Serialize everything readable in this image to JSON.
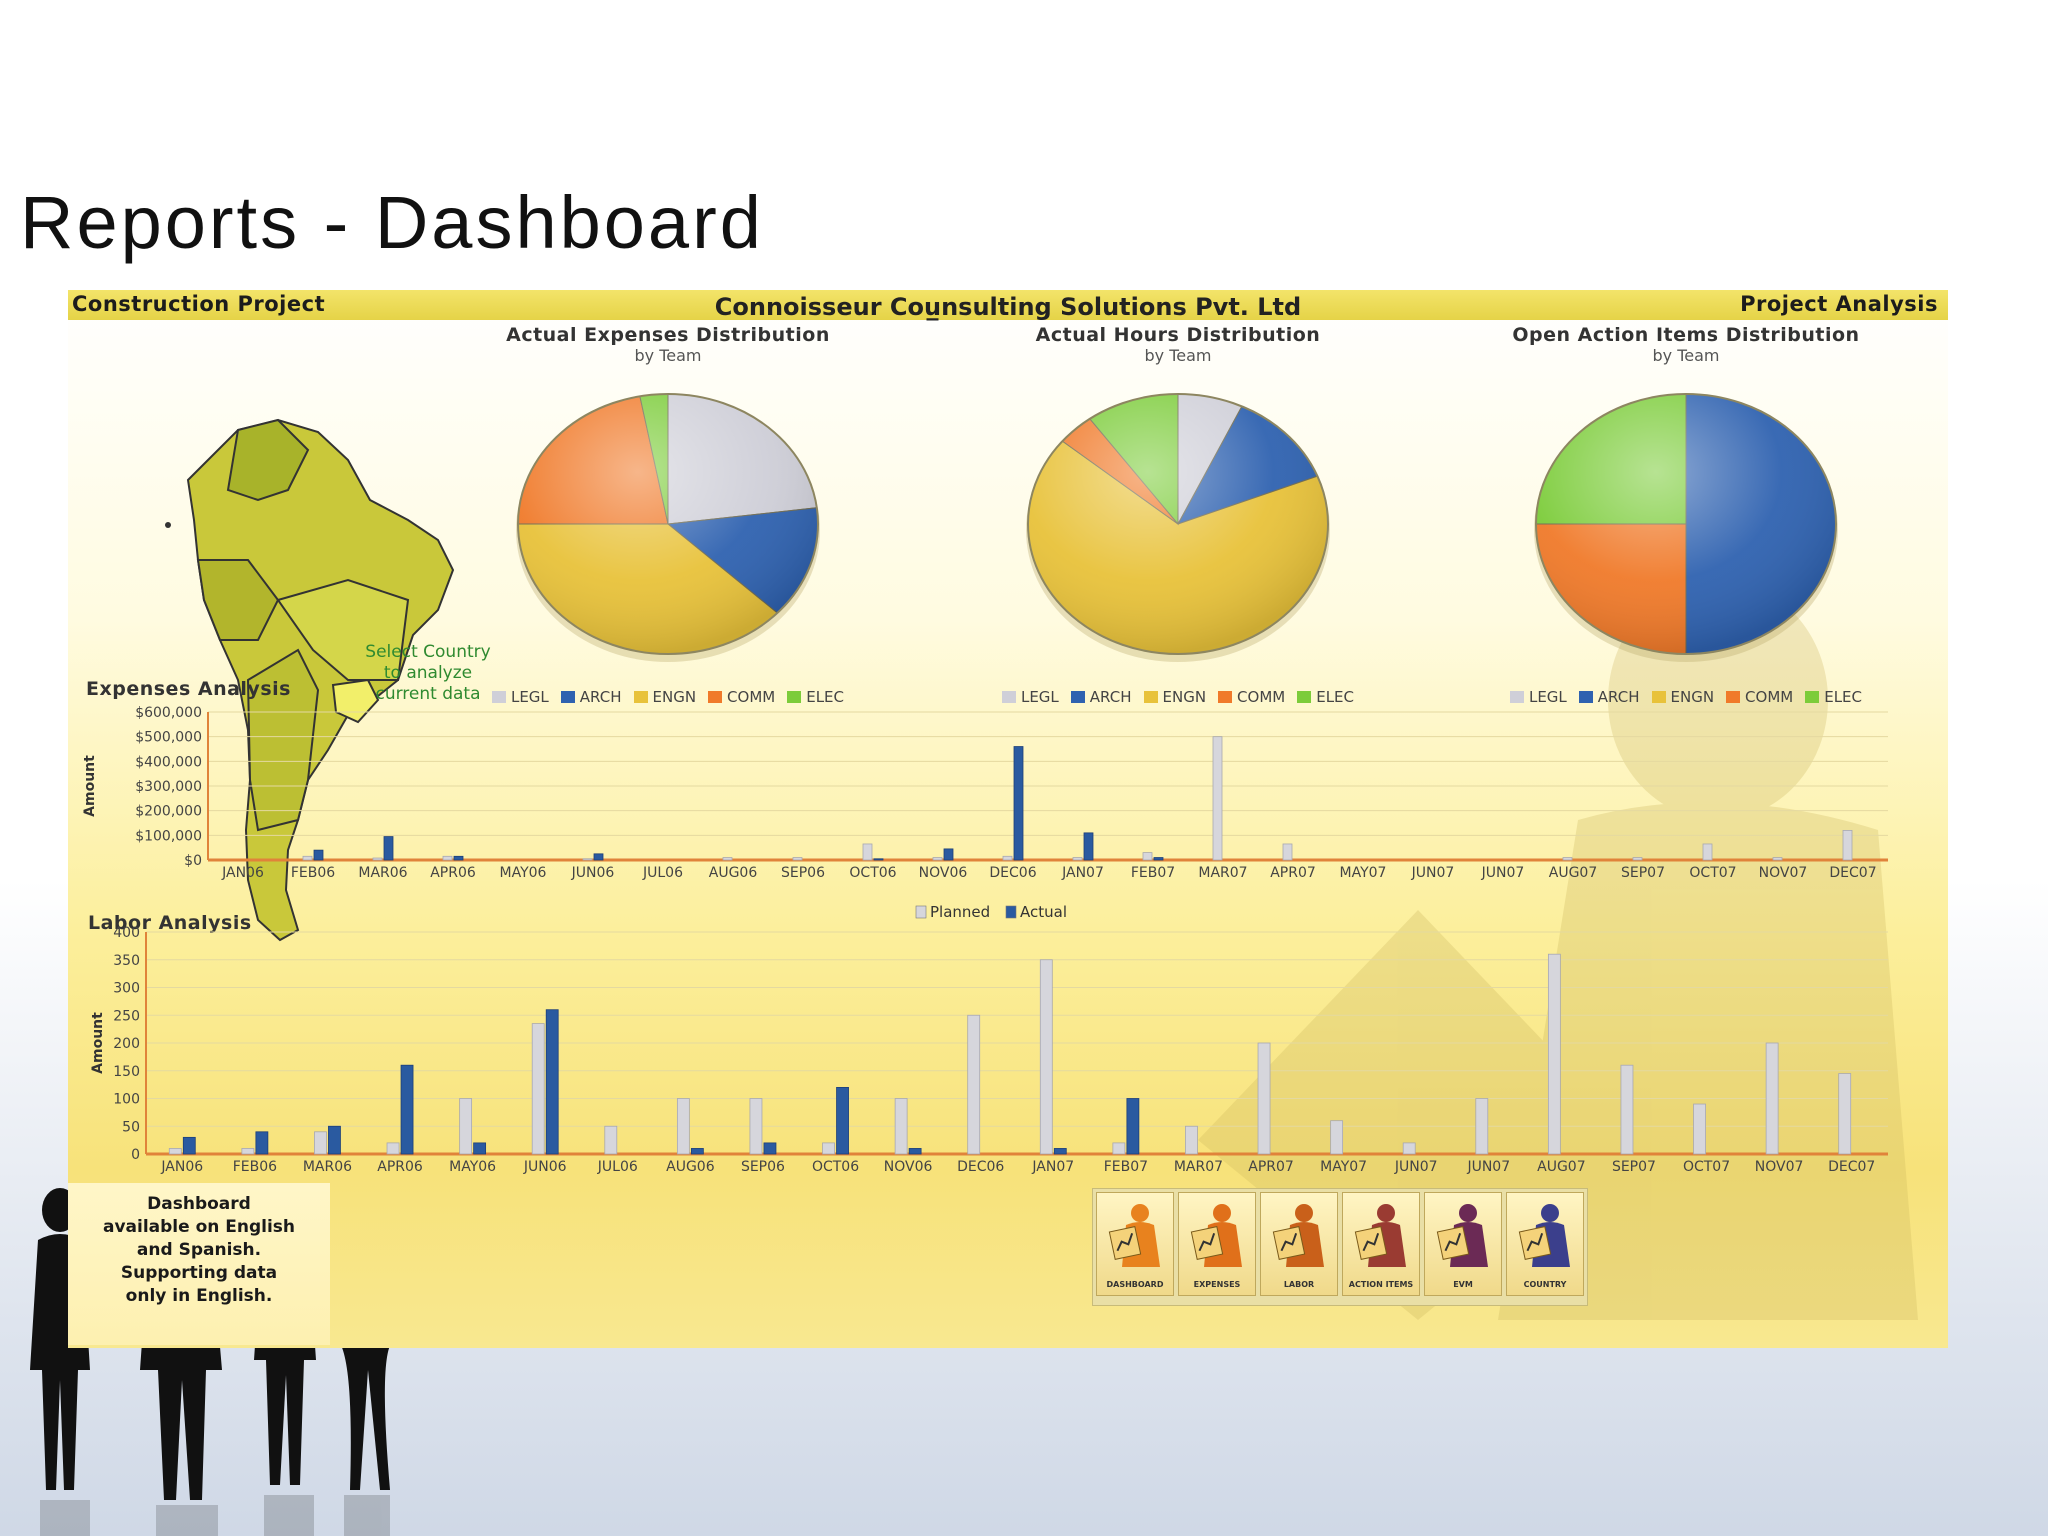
{
  "slide_title": "Reports - Dashboard",
  "header": {
    "left": "Construction Project",
    "center": "Connoisseur Cou̲nsulting Solutions Pvt. Ltd",
    "right": "Project Analysis"
  },
  "map": {
    "hint": "Select Country\nto analyze\ncurrent data"
  },
  "colors": {
    "LEGL": "#cfcfd8",
    "ARCH": "#2f62b0",
    "ENGN": "#e8c23a",
    "COMM": "#f07a2a",
    "ELEC": "#7ccc3a",
    "planned": "#d6d6dc",
    "actual": "#2a5aa0"
  },
  "footer": {
    "note": "Dashboard\navailable on English\nand Spanish.\nSupporting data\nonly in English.",
    "nav": [
      {
        "label": "DASHBOARD",
        "icon": "dashboard-icon"
      },
      {
        "label": "EXPENSES",
        "icon": "expenses-icon"
      },
      {
        "label": "LABOR",
        "icon": "labor-icon"
      },
      {
        "label": "ACTION ITEMS",
        "icon": "action-items-icon"
      },
      {
        "label": "EVM",
        "icon": "evm-icon"
      },
      {
        "label": "COUNTRY",
        "icon": "country-icon"
      }
    ]
  },
  "chart_data": [
    {
      "type": "pie",
      "title": "Actual Expenses Distribution",
      "subtitle": "by Team",
      "labels": [
        "LEGL",
        "ARCH",
        "ENGN",
        "COMM",
        "ELEC"
      ],
      "values": [
        23,
        14,
        38,
        22,
        3
      ]
    },
    {
      "type": "pie",
      "title": "Actual Hours Distribution",
      "subtitle": "by Team",
      "labels": [
        "LEGL",
        "ARCH",
        "ENGN",
        "COMM",
        "ELEC"
      ],
      "values": [
        7,
        12,
        67,
        4,
        10
      ]
    },
    {
      "type": "pie",
      "title": "Open Action Items Distribution",
      "subtitle": "by Team",
      "labels": [
        "LEGL",
        "ARCH",
        "ENGN",
        "COMM",
        "ELEC"
      ],
      "values": [
        0,
        50,
        0,
        25,
        25
      ]
    },
    {
      "type": "bar",
      "title": "Expenses Analysis",
      "ylabel": "Amount",
      "ylim": [
        0,
        600000
      ],
      "yticks": [
        "$0",
        "$100,000",
        "$200,000",
        "$300,000",
        "$400,000",
        "$500,000",
        "$600,000"
      ],
      "categories": [
        "JAN06",
        "FEB06",
        "MAR06",
        "APR06",
        "MAY06",
        "JUN06",
        "JUL06",
        "AUG06",
        "SEP06",
        "OCT06",
        "NOV06",
        "DEC06",
        "JAN07",
        "FEB07",
        "MAR07",
        "APR07",
        "MAY07",
        "JUN07",
        "JUN07",
        "AUG07",
        "SEP07",
        "OCT07",
        "NOV07",
        "DEC07"
      ],
      "series": [
        {
          "name": "Planned",
          "values": [
            0,
            15000,
            8000,
            15000,
            0,
            5000,
            0,
            10000,
            10000,
            65000,
            10000,
            15000,
            10000,
            30000,
            500000,
            65000,
            0,
            0,
            0,
            10000,
            10000,
            65000,
            10000,
            120000
          ]
        },
        {
          "name": "Actual",
          "values": [
            0,
            40000,
            95000,
            15000,
            0,
            25000,
            0,
            0,
            0,
            5000,
            45000,
            460000,
            110000,
            10000,
            0,
            0,
            0,
            0,
            0,
            0,
            0,
            0,
            0,
            0
          ]
        }
      ]
    },
    {
      "type": "bar",
      "title": "Labor Analysis",
      "ylabel": "Amount",
      "ylim": [
        0,
        400
      ],
      "yticks": [
        "0",
        "50",
        "100",
        "150",
        "200",
        "250",
        "300",
        "350",
        "400"
      ],
      "legend": [
        "Planned",
        "Actual"
      ],
      "categories": [
        "JAN06",
        "FEB06",
        "MAR06",
        "APR06",
        "MAY06",
        "JUN06",
        "JUL06",
        "AUG06",
        "SEP06",
        "OCT06",
        "NOV06",
        "DEC06",
        "JAN07",
        "FEB07",
        "MAR07",
        "APR07",
        "MAY07",
        "JUN07",
        "JUN07",
        "AUG07",
        "SEP07",
        "OCT07",
        "NOV07",
        "DEC07"
      ],
      "series": [
        {
          "name": "Planned",
          "values": [
            10,
            10,
            40,
            20,
            100,
            235,
            50,
            100,
            100,
            20,
            100,
            250,
            350,
            20,
            50,
            200,
            60,
            20,
            100,
            360,
            160,
            90,
            200,
            145
          ]
        },
        {
          "name": "Actual",
          "values": [
            30,
            40,
            50,
            160,
            20,
            260,
            0,
            10,
            20,
            120,
            10,
            0,
            10,
            100,
            0,
            0,
            0,
            0,
            0,
            0,
            0,
            0,
            0,
            0
          ]
        }
      ]
    }
  ]
}
